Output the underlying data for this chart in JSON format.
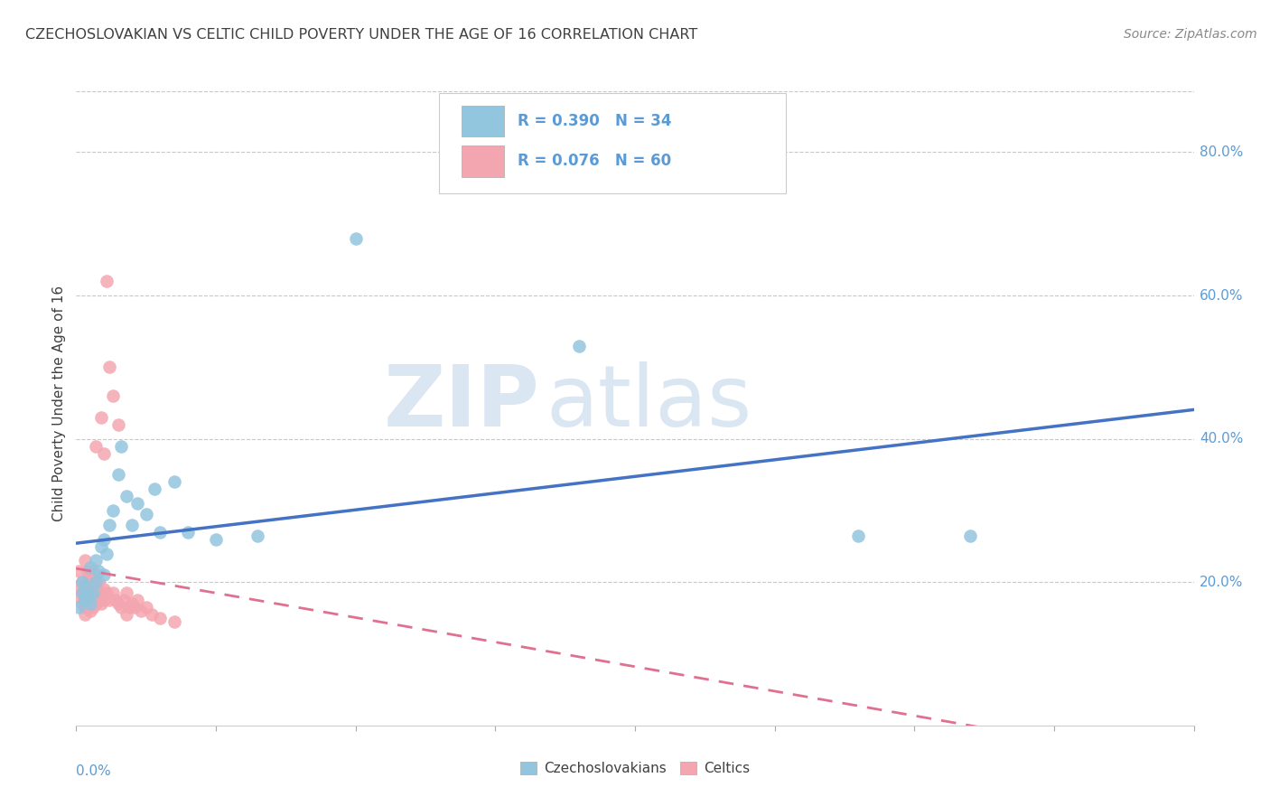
{
  "title": "CZECHOSLOVAKIAN VS CELTIC CHILD POVERTY UNDER THE AGE OF 16 CORRELATION CHART",
  "source": "Source: ZipAtlas.com",
  "ylabel": "Child Poverty Under the Age of 16",
  "xlim": [
    0.0,
    0.4
  ],
  "ylim": [
    0.0,
    0.9
  ],
  "yticks": [
    0.2,
    0.4,
    0.6,
    0.8
  ],
  "ytick_labels": [
    "20.0%",
    "40.0%",
    "60.0%",
    "80.0%"
  ],
  "xtick_left_label": "0.0%",
  "xtick_right_label": "40.0%",
  "czech_R": 0.39,
  "czech_N": 34,
  "celtic_R": 0.076,
  "celtic_N": 60,
  "blue_color": "#92C5DE",
  "pink_color": "#F4A6B0",
  "blue_line_color": "#4472C4",
  "pink_line_color": "#E07090",
  "watermark_zip": "ZIP",
  "watermark_atlas": "atlas",
  "background_color": "#FFFFFF",
  "grid_color": "#C8C8C8",
  "title_color": "#404040",
  "axis_label_color": "#404040",
  "tick_color": "#5B9BD5",
  "legend_text_color": "#5B9BD5",
  "czech_x": [
    0.001,
    0.002,
    0.002,
    0.003,
    0.003,
    0.004,
    0.005,
    0.005,
    0.006,
    0.007,
    0.007,
    0.008,
    0.009,
    0.01,
    0.01,
    0.011,
    0.012,
    0.013,
    0.015,
    0.016,
    0.018,
    0.02,
    0.022,
    0.025,
    0.028,
    0.03,
    0.035,
    0.04,
    0.05,
    0.065,
    0.1,
    0.18,
    0.28,
    0.32
  ],
  "czech_y": [
    0.165,
    0.185,
    0.2,
    0.175,
    0.195,
    0.18,
    0.17,
    0.22,
    0.185,
    0.2,
    0.23,
    0.215,
    0.25,
    0.21,
    0.26,
    0.24,
    0.28,
    0.3,
    0.35,
    0.39,
    0.32,
    0.28,
    0.31,
    0.295,
    0.33,
    0.27,
    0.34,
    0.27,
    0.26,
    0.265,
    0.68,
    0.53,
    0.265,
    0.265
  ],
  "celtic_x": [
    0.001,
    0.001,
    0.001,
    0.002,
    0.002,
    0.002,
    0.003,
    0.003,
    0.003,
    0.003,
    0.003,
    0.004,
    0.004,
    0.004,
    0.004,
    0.004,
    0.005,
    0.005,
    0.005,
    0.005,
    0.005,
    0.006,
    0.006,
    0.006,
    0.006,
    0.007,
    0.007,
    0.007,
    0.007,
    0.008,
    0.008,
    0.008,
    0.009,
    0.009,
    0.009,
    0.01,
    0.01,
    0.01,
    0.011,
    0.011,
    0.012,
    0.012,
    0.013,
    0.013,
    0.014,
    0.015,
    0.015,
    0.016,
    0.017,
    0.018,
    0.018,
    0.019,
    0.02,
    0.021,
    0.022,
    0.023,
    0.025,
    0.027,
    0.03,
    0.035
  ],
  "celtic_y": [
    0.18,
    0.195,
    0.215,
    0.17,
    0.185,
    0.2,
    0.155,
    0.165,
    0.175,
    0.185,
    0.23,
    0.165,
    0.175,
    0.185,
    0.2,
    0.215,
    0.16,
    0.17,
    0.185,
    0.195,
    0.21,
    0.165,
    0.18,
    0.195,
    0.215,
    0.17,
    0.185,
    0.2,
    0.39,
    0.175,
    0.185,
    0.2,
    0.17,
    0.185,
    0.43,
    0.175,
    0.19,
    0.38,
    0.185,
    0.62,
    0.175,
    0.5,
    0.185,
    0.46,
    0.175,
    0.17,
    0.42,
    0.165,
    0.175,
    0.155,
    0.185,
    0.165,
    0.17,
    0.165,
    0.175,
    0.16,
    0.165,
    0.155,
    0.15,
    0.145
  ]
}
